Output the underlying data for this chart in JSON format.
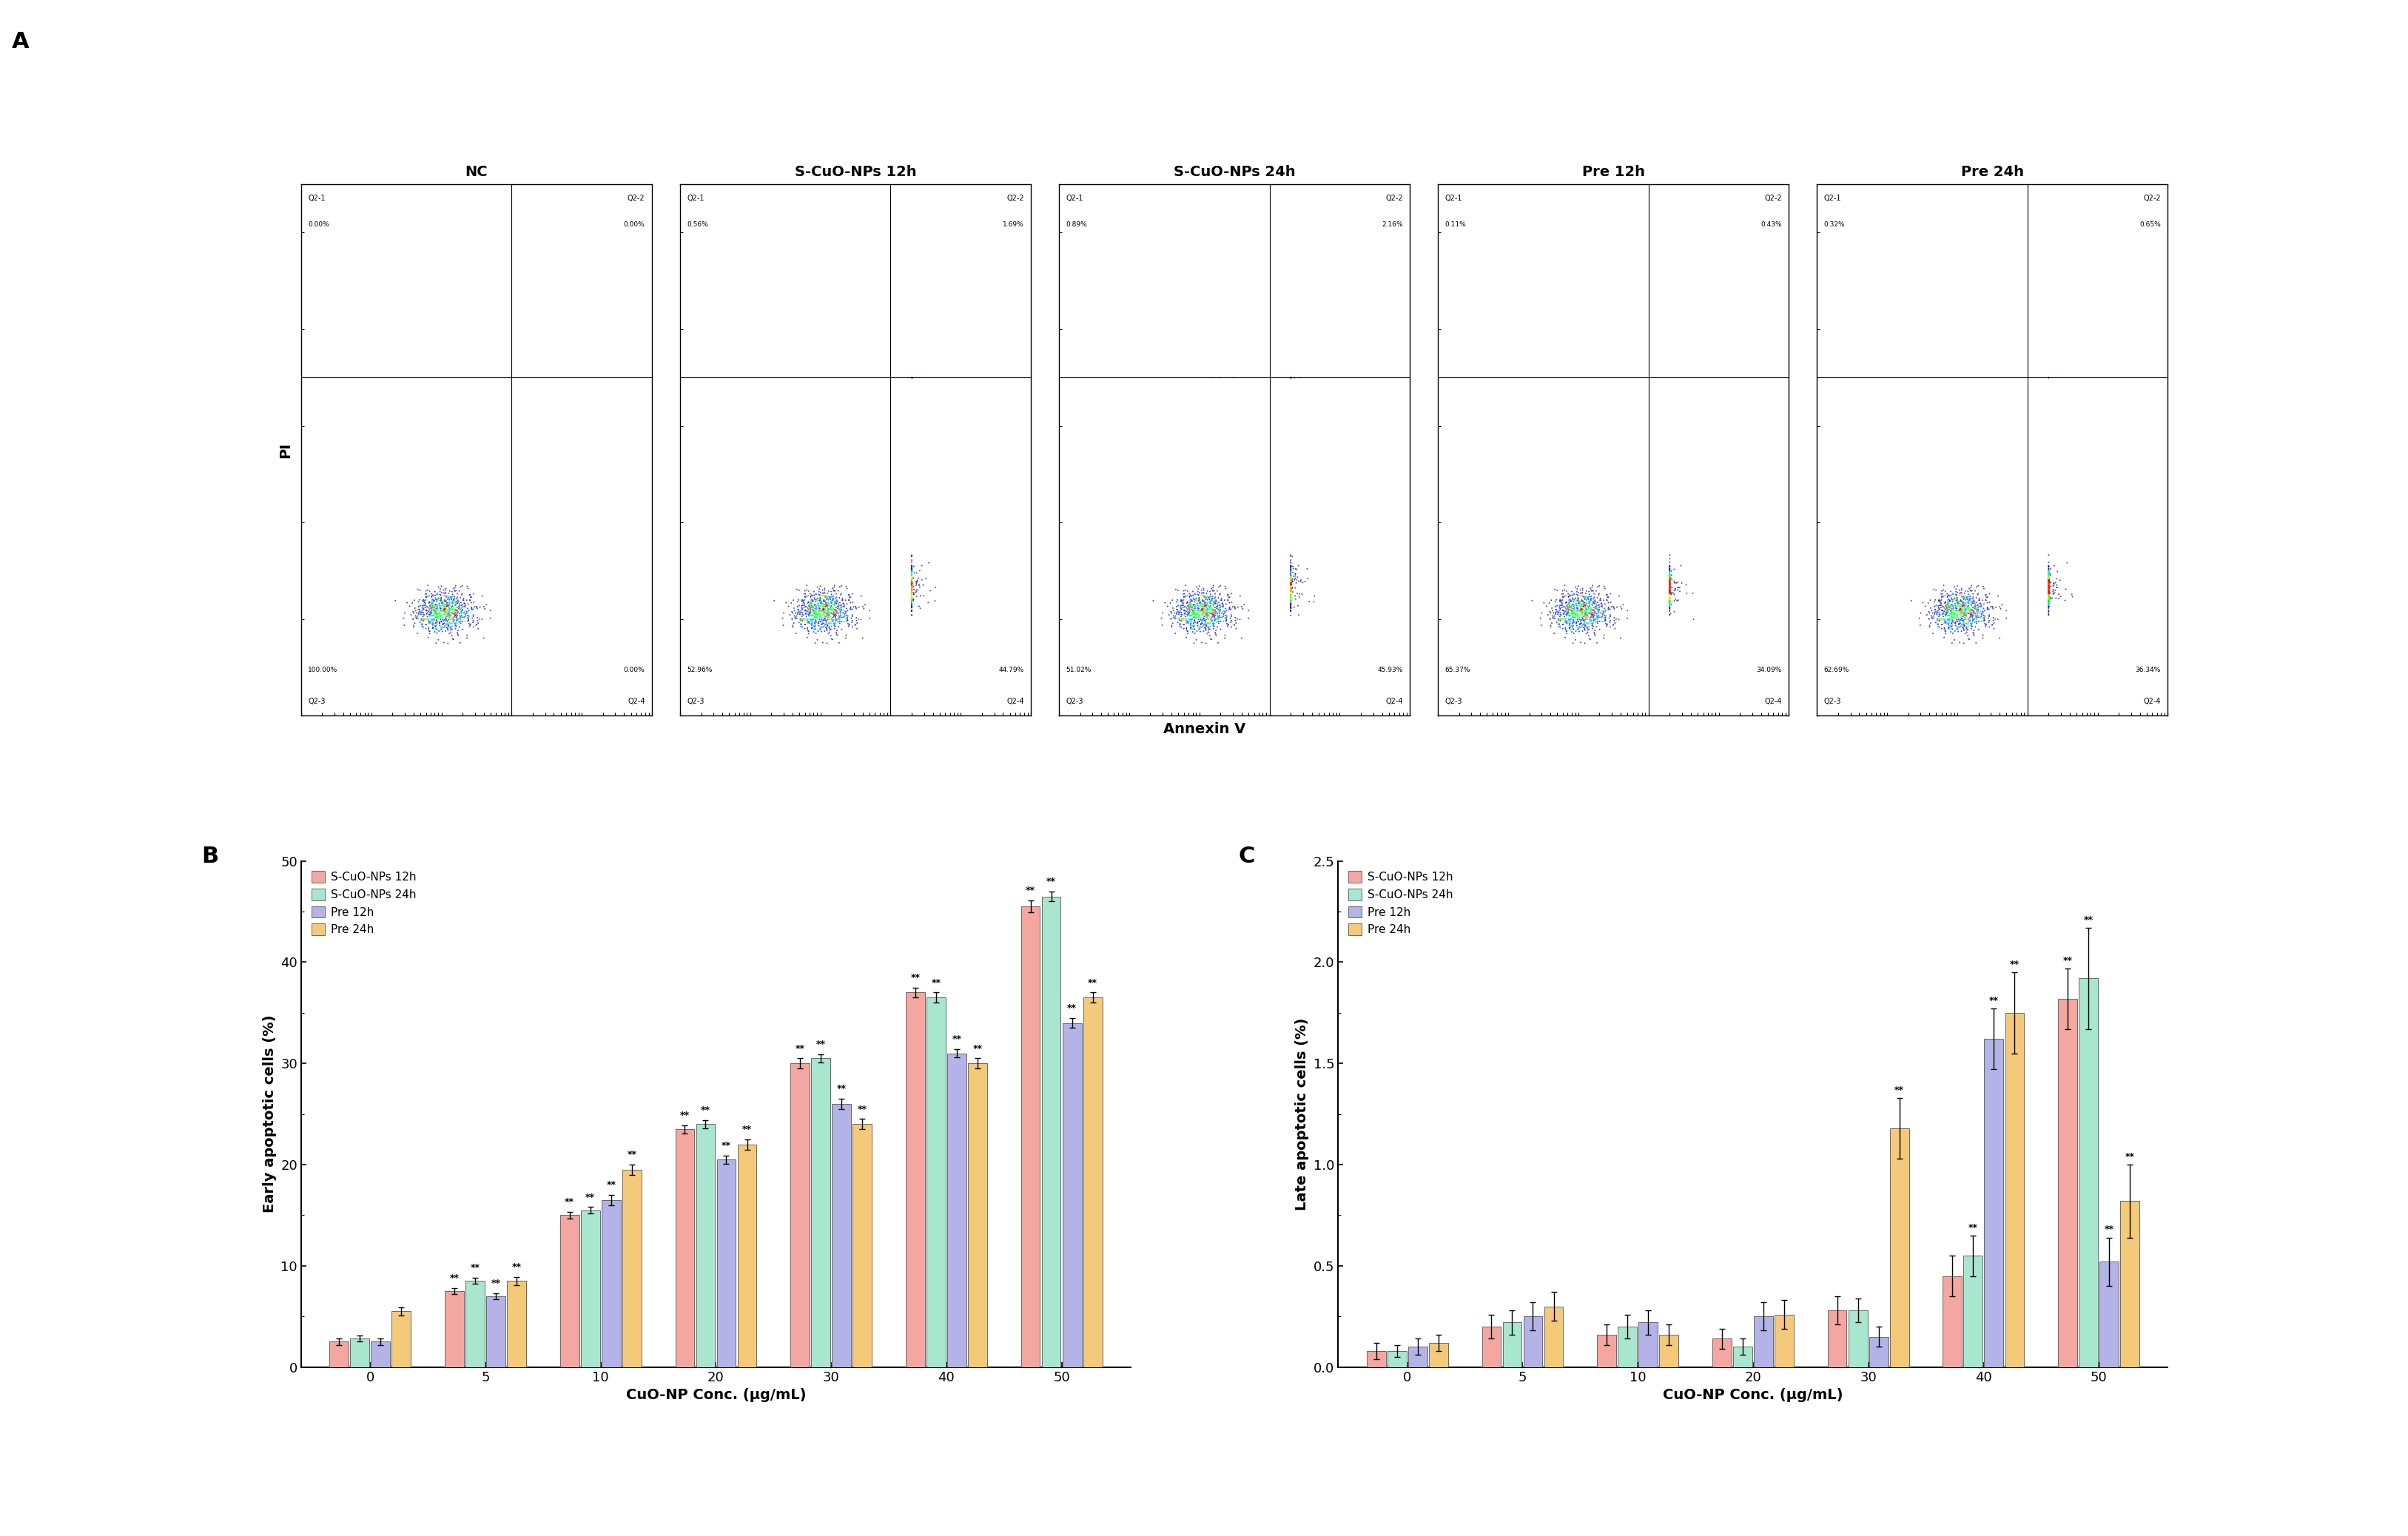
{
  "panel_A_labels": [
    "NC",
    "S-CuO-NPs 12h",
    "S-CuO-NPs 24h",
    "Pre 12h",
    "Pre 24h"
  ],
  "panel_A_quadrants": [
    {
      "Q2-1": "0.00%",
      "Q2-2": "0.00%",
      "Q2-3": "100.00%",
      "Q2-4": "0.00%"
    },
    {
      "Q2-1": "0.56%",
      "Q2-2": "1.69%",
      "Q2-3": "52.96%",
      "Q2-4": "44.79%"
    },
    {
      "Q2-1": "0.89%",
      "Q2-2": "2.16%",
      "Q2-3": "51.02%",
      "Q2-4": "45.93%"
    },
    {
      "Q2-1": "0.11%",
      "Q2-2": "0.43%",
      "Q2-3": "65.37%",
      "Q2-4": "34.09%"
    },
    {
      "Q2-1": "0.32%",
      "Q2-2": "0.65%",
      "Q2-3": "62.69%",
      "Q2-4": "36.34%"
    }
  ],
  "x_categories": [
    0,
    5,
    10,
    20,
    30,
    40,
    50
  ],
  "series_names": [
    "S-CuO-NPs 12h",
    "S-CuO-NPs 24h",
    "Pre 12h",
    "Pre 24h"
  ],
  "bar_colors": [
    "#F4A6A0",
    "#A8E6CF",
    "#B3B3E8",
    "#F4C97A"
  ],
  "early_apoptosis": {
    "S-CuO-NPs 12h": [
      2.5,
      7.5,
      15.0,
      23.5,
      30.0,
      37.0,
      45.5
    ],
    "S-CuO-NPs 24h": [
      2.8,
      8.5,
      15.5,
      24.0,
      30.5,
      36.5,
      46.5
    ],
    "Pre 12h": [
      2.5,
      7.0,
      16.5,
      20.5,
      26.0,
      31.0,
      34.0
    ],
    "Pre 24h": [
      5.5,
      8.5,
      19.5,
      22.0,
      24.0,
      30.0,
      36.5
    ]
  },
  "early_apoptosis_err": {
    "S-CuO-NPs 12h": [
      0.3,
      0.3,
      0.3,
      0.4,
      0.5,
      0.5,
      0.6
    ],
    "S-CuO-NPs 24h": [
      0.3,
      0.3,
      0.3,
      0.4,
      0.4,
      0.5,
      0.5
    ],
    "Pre 12h": [
      0.3,
      0.3,
      0.5,
      0.4,
      0.5,
      0.4,
      0.5
    ],
    "Pre 24h": [
      0.4,
      0.4,
      0.5,
      0.5,
      0.5,
      0.5,
      0.5
    ]
  },
  "late_apoptosis": {
    "S-CuO-NPs 12h": [
      0.08,
      0.2,
      0.16,
      0.14,
      0.28,
      0.45,
      1.82
    ],
    "S-CuO-NPs 24h": [
      0.08,
      0.22,
      0.2,
      0.1,
      0.28,
      0.55,
      1.92
    ],
    "Pre 12h": [
      0.1,
      0.25,
      0.22,
      0.25,
      0.15,
      1.62,
      0.52
    ],
    "Pre 24h": [
      0.12,
      0.3,
      0.16,
      0.26,
      1.18,
      1.75,
      0.82
    ]
  },
  "late_apoptosis_err": {
    "S-CuO-NPs 12h": [
      0.04,
      0.06,
      0.05,
      0.05,
      0.07,
      0.1,
      0.15
    ],
    "S-CuO-NPs 24h": [
      0.03,
      0.06,
      0.06,
      0.04,
      0.06,
      0.1,
      0.25
    ],
    "Pre 12h": [
      0.04,
      0.07,
      0.06,
      0.07,
      0.05,
      0.15,
      0.12
    ],
    "Pre 24h": [
      0.04,
      0.07,
      0.05,
      0.07,
      0.15,
      0.2,
      0.18
    ]
  },
  "early_sig_labels": {
    "S-CuO-NPs 12h": [
      "",
      "**",
      "**",
      "**",
      "**",
      "**",
      "**"
    ],
    "S-CuO-NPs 24h": [
      "",
      "**",
      "**",
      "**",
      "**",
      "**",
      "**"
    ],
    "Pre 12h": [
      "",
      "**",
      "**",
      "**",
      "**",
      "**",
      "**"
    ],
    "Pre 24h": [
      "",
      "**",
      "**",
      "**",
      "**",
      "**",
      "**"
    ]
  },
  "late_sig_labels": {
    "S-CuO-NPs 12h": [
      "",
      "",
      "",
      "",
      "",
      "",
      "**"
    ],
    "S-CuO-NPs 24h": [
      "",
      "",
      "",
      "",
      "",
      "**",
      "**"
    ],
    "Pre 12h": [
      "",
      "",
      "",
      "",
      "",
      "**",
      "**"
    ],
    "Pre 24h": [
      "",
      "",
      "",
      "",
      "**",
      "**",
      "**"
    ]
  },
  "early_ylim": [
    0,
    50
  ],
  "early_yticks": [
    0,
    10,
    20,
    30,
    40,
    50
  ],
  "late_ylim": [
    0,
    2.5
  ],
  "late_yticks": [
    0.0,
    0.5,
    1.0,
    1.5,
    2.0,
    2.5
  ],
  "xlabel": "CuO-NP Conc. (μg/mL)",
  "early_ylabel": "Early apoptotic cells (%)",
  "late_ylabel": "Late apoptotic cells (%)",
  "background_color": "#FFFFFF",
  "axis_color": "#000000",
  "flow_scatter_colors": {
    "hot": "#FF0000",
    "warm": "#FF8C00",
    "yellow": "#FFFF00",
    "cyan": "#00FFFF",
    "blue": "#0000FF",
    "dark_blue": "#00008B"
  }
}
